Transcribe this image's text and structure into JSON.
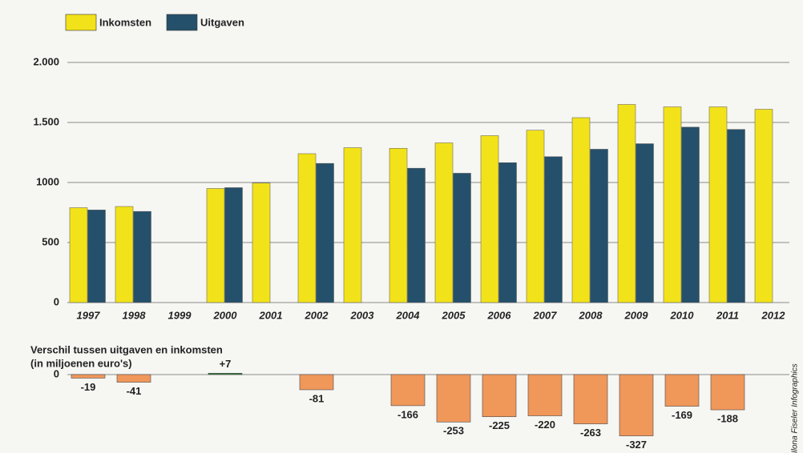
{
  "chart_data": [
    {
      "type": "bar",
      "categories": [
        "1997",
        "1998",
        "1999",
        "2000",
        "2001",
        "2002",
        "2003",
        "2004",
        "2005",
        "2006",
        "2007",
        "2008",
        "2009",
        "2010",
        "2011",
        "2012"
      ],
      "series": [
        {
          "name": "Inkomsten",
          "color": "#f2e21a",
          "values": [
            790,
            800,
            null,
            950,
            995,
            1240,
            1290,
            1285,
            1330,
            1390,
            1435,
            1540,
            1650,
            1630,
            1630,
            1610
          ]
        },
        {
          "name": "Uitgaven",
          "color": "#25506b",
          "values": [
            771,
            759,
            null,
            957,
            null,
            1159,
            null,
            1119,
            1077,
            1165,
            1215,
            1277,
            1323,
            1461,
            1442,
            null
          ]
        }
      ],
      "ylim": [
        0,
        2000
      ],
      "yticks": [
        0,
        500,
        1000,
        {
          "value": 1500,
          "label": "1.500"
        },
        {
          "value": 2000,
          "label": "2.000"
        }
      ],
      "grid": true
    },
    {
      "type": "diffbar",
      "title": "Verschil tussen uitgaven en inkomsten",
      "subtitle": "(in miljoenen euro's)",
      "categories": [
        "1997",
        "1998",
        "1999",
        "2000",
        "2001",
        "2002",
        "2003",
        "2004",
        "2005",
        "2006",
        "2007",
        "2008",
        "2009",
        "2010",
        "2011",
        "2012"
      ],
      "values": [
        -19,
        -41,
        null,
        7,
        null,
        -81,
        null,
        -166,
        -253,
        -225,
        -220,
        -263,
        -327,
        -169,
        -188,
        null
      ],
      "value_labels": [
        "-19",
        "-41",
        null,
        "+7",
        null,
        "-81",
        null,
        "-166",
        "-253",
        "-225",
        "-220",
        "-263",
        "-327",
        "-169",
        "-188",
        null
      ],
      "color": "#f0975a",
      "ylim": [
        -350,
        20
      ],
      "yticks": [
        0
      ]
    }
  ],
  "credit": "Ilona Fiseler Infographics"
}
